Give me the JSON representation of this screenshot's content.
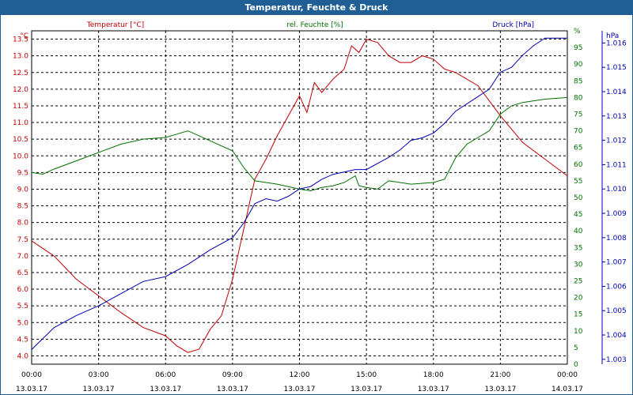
{
  "window": {
    "title": "Temperatur, Feuchte & Druck"
  },
  "colors": {
    "temperature": "#c00000",
    "humidity": "#007000",
    "pressure": "#0000b0",
    "grid": "#000000",
    "titlebar": "#1f5f96"
  },
  "chart_data": {
    "type": "line",
    "grid": true,
    "x_range": [
      "13.03.17 00:00",
      "14.03.17 00:00"
    ],
    "x_ticks": [
      {
        "time": "00:00",
        "date": "13.03.17"
      },
      {
        "time": "03:00",
        "date": "13.03.17"
      },
      {
        "time": "06:00",
        "date": "13.03.17"
      },
      {
        "time": "09:00",
        "date": "13.03.17"
      },
      {
        "time": "12:00",
        "date": "13.03.17"
      },
      {
        "time": "15:00",
        "date": "13.03.17"
      },
      {
        "time": "18:00",
        "date": "13.03.17"
      },
      {
        "time": "21:00",
        "date": "13.03.17"
      },
      {
        "time": "00:00",
        "date": "14.03.17"
      }
    ],
    "axes": {
      "left": {
        "label": "Temperatur [°C]",
        "unit": "°C",
        "range": [
          3.75,
          13.75
        ],
        "ticks": [
          "4.0",
          "4.5",
          "5.0",
          "5.5",
          "6.0",
          "6.5",
          "7.0",
          "7.5",
          "8.0",
          "8.5",
          "9.0",
          "9.5",
          "10.0",
          "10.5",
          "11.0",
          "11.5",
          "12.0",
          "12.5",
          "13.0",
          "13.5"
        ]
      },
      "right1": {
        "label": "rel. Feuchte [%]",
        "unit": "%",
        "range": [
          0,
          100
        ],
        "ticks": [
          "0",
          "5",
          "10",
          "15",
          "20",
          "25",
          "30",
          "35",
          "40",
          "45",
          "50",
          "55",
          "60",
          "65",
          "70",
          "75",
          "80",
          "85",
          "90",
          "95",
          "%"
        ]
      },
      "right2": {
        "label": "Druck [hPa]",
        "unit": "hPa",
        "range": [
          1.0028,
          1.0165
        ],
        "ticks": [
          "1.003",
          "1.004",
          "1.005",
          "1.006",
          "1.007",
          "1.008",
          "1.009",
          "1.010",
          "1.011",
          "1.012",
          "1.013",
          "1.014",
          "1.015",
          "1.016"
        ]
      }
    },
    "series": [
      {
        "name": "Temperatur [°C]",
        "axis": "left",
        "points": [
          [
            "13.03.17 00:00",
            7.45
          ],
          [
            "13.03.17 01:00",
            7.0
          ],
          [
            "13.03.17 02:00",
            6.3
          ],
          [
            "13.03.17 03:00",
            5.8
          ],
          [
            "13.03.17 04:00",
            5.3
          ],
          [
            "13.03.17 05:00",
            4.85
          ],
          [
            "13.03.17 06:00",
            4.6
          ],
          [
            "13.03.17 06:30",
            4.3
          ],
          [
            "13.03.17 07:00",
            4.1
          ],
          [
            "13.03.17 07:30",
            4.2
          ],
          [
            "13.03.17 08:00",
            4.8
          ],
          [
            "13.03.17 08:30",
            5.2
          ],
          [
            "13.03.17 09:00",
            6.3
          ],
          [
            "13.03.17 09:30",
            7.8
          ],
          [
            "13.03.17 10:00",
            9.3
          ],
          [
            "13.03.17 10:30",
            9.9
          ],
          [
            "13.03.17 11:00",
            10.6
          ],
          [
            "13.03.17 11:30",
            11.2
          ],
          [
            "13.03.17 12:00",
            11.8
          ],
          [
            "13.03.17 12:20",
            11.3
          ],
          [
            "13.03.17 12:40",
            12.2
          ],
          [
            "13.03.17 13:00",
            11.9
          ],
          [
            "13.03.17 13:30",
            12.3
          ],
          [
            "13.03.17 14:00",
            12.6
          ],
          [
            "13.03.17 14:20",
            13.3
          ],
          [
            "13.03.17 14:40",
            13.1
          ],
          [
            "13.03.17 15:00",
            13.5
          ],
          [
            "13.03.17 15:30",
            13.4
          ],
          [
            "13.03.17 16:00",
            13.0
          ],
          [
            "13.03.17 16:30",
            12.8
          ],
          [
            "13.03.17 17:00",
            12.8
          ],
          [
            "13.03.17 17:30",
            13.0
          ],
          [
            "13.03.17 18:00",
            12.9
          ],
          [
            "13.03.17 18:30",
            12.6
          ],
          [
            "13.03.17 19:00",
            12.5
          ],
          [
            "13.03.17 20:00",
            12.1
          ],
          [
            "13.03.17 21:00",
            11.2
          ],
          [
            "13.03.17 22:00",
            10.4
          ],
          [
            "13.03.17 23:00",
            9.9
          ],
          [
            "14.03.17 00:00",
            9.4
          ]
        ]
      },
      {
        "name": "rel. Feuchte [%]",
        "axis": "right1",
        "points": [
          [
            "13.03.17 00:00",
            57.5
          ],
          [
            "13.03.17 00:30",
            57.0
          ],
          [
            "13.03.17 01:00",
            58.5
          ],
          [
            "13.03.17 02:00",
            61.0
          ],
          [
            "13.03.17 03:00",
            63.5
          ],
          [
            "13.03.17 04:00",
            66.0
          ],
          [
            "13.03.17 05:00",
            67.5
          ],
          [
            "13.03.17 06:00",
            68.0
          ],
          [
            "13.03.17 06:30",
            69.0
          ],
          [
            "13.03.17 07:00",
            70.0
          ],
          [
            "13.03.17 07:30",
            68.5
          ],
          [
            "13.03.17 08:00",
            67.0
          ],
          [
            "13.03.17 09:00",
            64.0
          ],
          [
            "13.03.17 09:30",
            59.0
          ],
          [
            "13.03.17 10:00",
            55.0
          ],
          [
            "13.03.17 10:30",
            54.5
          ],
          [
            "13.03.17 11:00",
            54.0
          ],
          [
            "13.03.17 12:00",
            52.5
          ],
          [
            "13.03.17 12:30",
            52.0
          ],
          [
            "13.03.17 13:00",
            53.0
          ],
          [
            "13.03.17 13:30",
            53.5
          ],
          [
            "13.03.17 14:00",
            54.5
          ],
          [
            "13.03.17 14:30",
            56.5
          ],
          [
            "13.03.17 14:40",
            53.5
          ],
          [
            "13.03.17 15:00",
            53.0
          ],
          [
            "13.03.17 15:30",
            52.5
          ],
          [
            "13.03.17 16:00",
            55.0
          ],
          [
            "13.03.17 16:30",
            54.5
          ],
          [
            "13.03.17 17:00",
            54.0
          ],
          [
            "13.03.17 18:00",
            54.5
          ],
          [
            "13.03.17 18:30",
            55.5
          ],
          [
            "13.03.17 19:00",
            62.0
          ],
          [
            "13.03.17 19:30",
            66.0
          ],
          [
            "13.03.17 20:00",
            68.0
          ],
          [
            "13.03.17 20:30",
            70.0
          ],
          [
            "13.03.17 21:00",
            75.0
          ],
          [
            "13.03.17 21:30",
            77.5
          ],
          [
            "13.03.17 22:00",
            78.5
          ],
          [
            "13.03.17 23:00",
            79.5
          ],
          [
            "14.03.17 00:00",
            80.0
          ]
        ]
      },
      {
        "name": "Druck [hPa]",
        "axis": "right2",
        "points": [
          [
            "13.03.17 00:00",
            1.0034
          ],
          [
            "13.03.17 01:00",
            1.0043
          ],
          [
            "13.03.17 02:00",
            1.0048
          ],
          [
            "13.03.17 03:00",
            1.0052
          ],
          [
            "13.03.17 04:00",
            1.0057
          ],
          [
            "13.03.17 05:00",
            1.0062
          ],
          [
            "13.03.17 06:00",
            1.0064
          ],
          [
            "13.03.17 07:00",
            1.0069
          ],
          [
            "13.03.17 08:00",
            1.0075
          ],
          [
            "13.03.17 09:00",
            1.008
          ],
          [
            "13.03.17 09:30",
            1.0086
          ],
          [
            "13.03.17 10:00",
            1.0094
          ],
          [
            "13.03.17 10:30",
            1.0096
          ],
          [
            "13.03.17 11:00",
            1.0095
          ],
          [
            "13.03.17 11:30",
            1.0097
          ],
          [
            "13.03.17 12:00",
            1.01
          ],
          [
            "13.03.17 12:30",
            1.0101
          ],
          [
            "13.03.17 13:00",
            1.0104
          ],
          [
            "13.03.17 13:30",
            1.0106
          ],
          [
            "13.03.17 14:00",
            1.0107
          ],
          [
            "13.03.17 14:30",
            1.0108
          ],
          [
            "13.03.17 15:00",
            1.0108
          ],
          [
            "13.03.17 16:00",
            1.0113
          ],
          [
            "13.03.17 16:30",
            1.0116
          ],
          [
            "13.03.17 17:00",
            1.012
          ],
          [
            "13.03.17 17:30",
            1.0121
          ],
          [
            "13.03.17 18:00",
            1.0123
          ],
          [
            "13.03.17 18:30",
            1.0127
          ],
          [
            "13.03.17 19:00",
            1.0132
          ],
          [
            "13.03.17 20:00",
            1.0138
          ],
          [
            "13.03.17 20:30",
            1.0141
          ],
          [
            "13.03.17 21:00",
            1.0148
          ],
          [
            "13.03.17 21:30",
            1.015
          ],
          [
            "13.03.17 22:00",
            1.0155
          ],
          [
            "13.03.17 22:30",
            1.0159
          ],
          [
            "13.03.17 23:00",
            1.0162
          ],
          [
            "14.03.17 00:00",
            1.0162
          ]
        ]
      }
    ]
  }
}
